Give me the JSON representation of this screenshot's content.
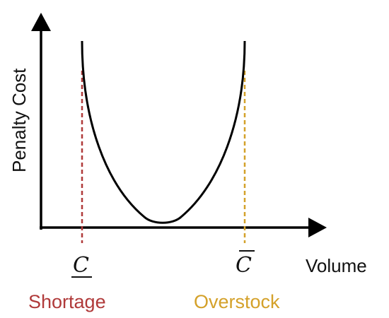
{
  "diagram": {
    "y_axis_label": "Penalty Cost",
    "x_axis_label": "Volume",
    "lower_bound_label": "C",
    "upper_bound_label": "C",
    "shortage_label": "Shortage",
    "overstock_label": "Overstock",
    "colors": {
      "axis": "#000000",
      "curve": "#000000",
      "shortage": "#b03a3a",
      "overstock": "#d4a12a",
      "text": "#111111"
    }
  }
}
